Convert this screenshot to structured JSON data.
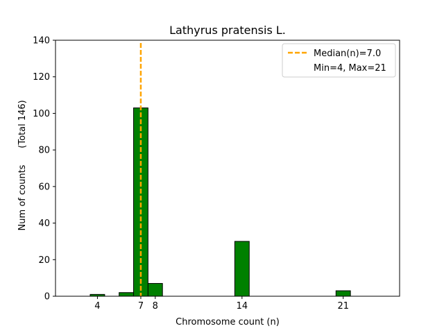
{
  "chart_data": {
    "type": "bar",
    "title": "Lathyrus pratensis L.",
    "xlabel": "Chromosome count (n)",
    "ylabel": "Num of counts",
    "ylabel_secondary": "(Total 146)",
    "xlim": [
      1.1,
      24.9
    ],
    "ylim": [
      0,
      140
    ],
    "x_ticks": [
      4,
      7,
      8,
      14,
      21
    ],
    "y_ticks": [
      0,
      20,
      40,
      60,
      80,
      100,
      120,
      140
    ],
    "bar_width": 1,
    "bar_color": "#008000",
    "bar_edge_color": "#000000",
    "bars": [
      {
        "x": 4,
        "value": 1
      },
      {
        "x": 6,
        "value": 2
      },
      {
        "x": 7,
        "value": 103
      },
      {
        "x": 8,
        "value": 7
      },
      {
        "x": 14,
        "value": 30
      },
      {
        "x": 21,
        "value": 3
      }
    ],
    "median_line": {
      "x": 7.0,
      "color": "#FFA500",
      "style": "dashed"
    },
    "legend": {
      "position": "top-right",
      "entries": [
        "Median(n)=7.0",
        "Min=4, Max=21"
      ]
    }
  }
}
